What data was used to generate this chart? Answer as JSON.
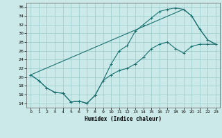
{
  "xlabel": "Humidex (Indice chaleur)",
  "background_color": "#cce9e9",
  "grid_color": "#99cccc",
  "line_color": "#1a7070",
  "xlim": [
    -0.5,
    23.5
  ],
  "ylim": [
    13,
    37
  ],
  "xticks": [
    0,
    1,
    2,
    3,
    4,
    5,
    6,
    7,
    8,
    9,
    10,
    11,
    12,
    13,
    14,
    15,
    16,
    17,
    18,
    19,
    20,
    21,
    22,
    23
  ],
  "yticks": [
    14,
    16,
    18,
    20,
    22,
    24,
    26,
    28,
    30,
    32,
    34,
    36
  ],
  "line1_x": [
    0,
    1,
    2,
    3,
    4,
    5,
    6,
    7,
    8,
    9,
    10,
    11,
    12,
    13,
    14,
    15,
    16,
    17,
    18,
    19,
    20,
    21,
    22,
    23
  ],
  "line1_y": [
    20.5,
    19.2,
    17.5,
    16.5,
    16.3,
    14.3,
    14.5,
    14.0,
    15.8,
    19.2,
    23.0,
    26.0,
    27.2,
    30.5,
    32.0,
    33.5,
    35.0,
    35.5,
    35.8,
    35.5,
    34.0,
    31.0,
    28.5,
    27.5
  ],
  "line2_x": [
    0,
    1,
    2,
    3,
    4,
    5,
    6,
    7,
    8,
    9,
    10,
    11,
    12,
    13,
    14,
    15,
    16,
    17,
    18,
    19,
    20,
    21,
    22,
    23
  ],
  "line2_y": [
    20.5,
    19.2,
    17.5,
    16.5,
    16.3,
    14.3,
    14.5,
    14.0,
    15.8,
    19.2,
    20.5,
    21.5,
    22.0,
    23.0,
    24.5,
    26.5,
    27.5,
    28.0,
    26.5,
    25.5,
    27.0,
    27.5,
    27.5,
    27.5
  ],
  "line3_x": [
    0,
    19,
    20,
    21,
    22,
    23
  ],
  "line3_y": [
    20.5,
    35.5,
    34.0,
    31.0,
    28.5,
    27.5
  ],
  "figwidth": 3.2,
  "figheight": 2.0,
  "dpi": 100
}
